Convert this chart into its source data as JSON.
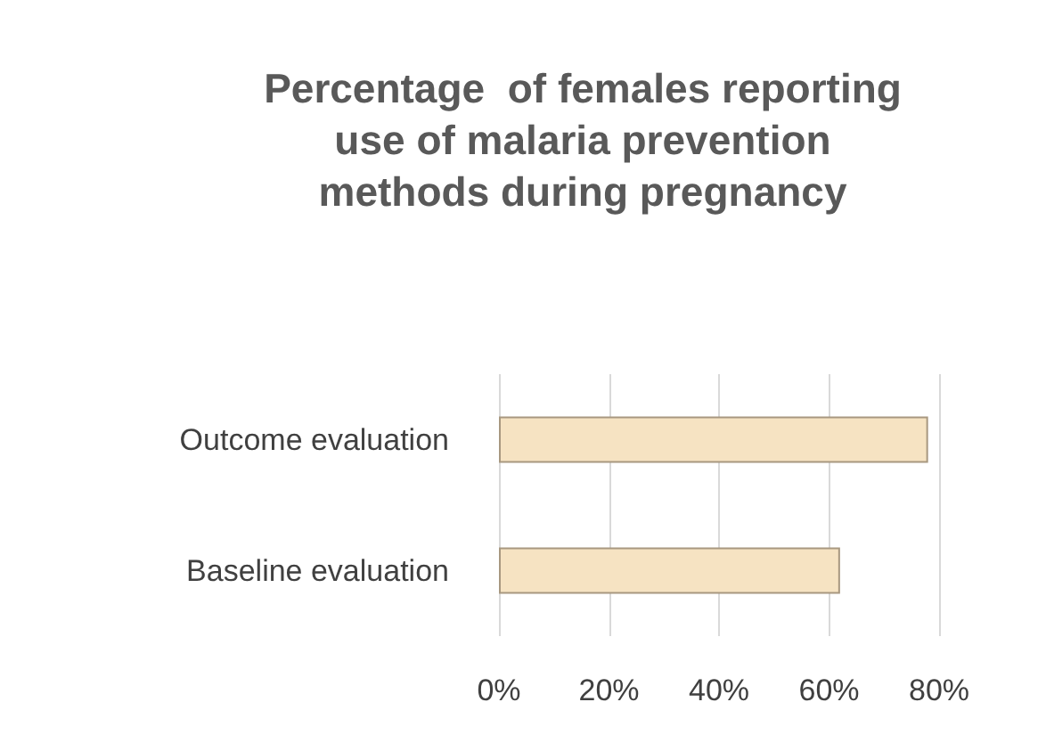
{
  "chart_data": {
    "type": "bar",
    "orientation": "horizontal",
    "title": "Percentage  of females reporting use of malaria prevention methods during pregnancy",
    "categories": [
      "Outcome evaluation",
      "Baseline evaluation"
    ],
    "series": [
      {
        "color": "#f6e3c2",
        "values": [
          78,
          62
        ]
      }
    ],
    "xlim": [
      0,
      80
    ],
    "xticks": [
      {
        "value": 0,
        "label": "0%"
      },
      {
        "value": 20,
        "label": "20%"
      },
      {
        "value": 40,
        "label": "40%"
      },
      {
        "value": 60,
        "label": "60%"
      },
      {
        "value": 80,
        "label": "80%"
      }
    ],
    "grid": "x"
  }
}
